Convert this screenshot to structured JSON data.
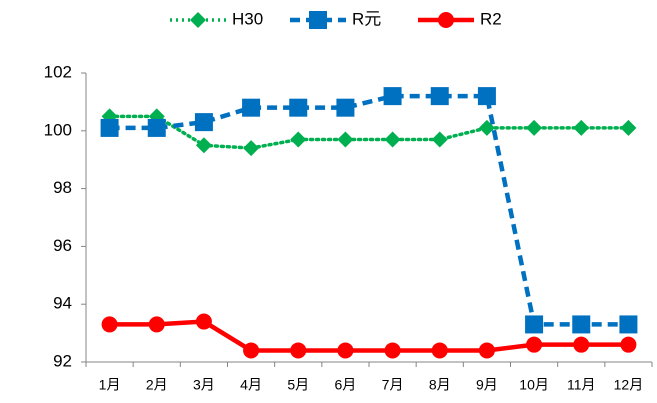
{
  "chart_data": {
    "type": "line",
    "categories": [
      "1月",
      "2月",
      "3月",
      "4月",
      "5月",
      "6月",
      "7月",
      "8月",
      "9月",
      "10月",
      "11月",
      "12月"
    ],
    "series": [
      {
        "name": "H30",
        "color": "#00b050",
        "line_style": "dotted",
        "marker": "diamond",
        "values": [
          100.5,
          100.5,
          99.5,
          99.4,
          99.7,
          99.7,
          99.7,
          99.7,
          100.1,
          100.1,
          100.1,
          100.1
        ]
      },
      {
        "name": "R元",
        "color": "#0070c0",
        "line_style": "dashed",
        "marker": "square",
        "values": [
          100.1,
          100.1,
          100.3,
          100.8,
          100.8,
          100.8,
          101.2,
          101.2,
          101.2,
          93.3,
          93.3,
          93.3
        ]
      },
      {
        "name": "R2",
        "color": "#ff0000",
        "line_style": "solid",
        "marker": "circle",
        "values": [
          93.3,
          93.3,
          93.4,
          92.4,
          92.4,
          92.4,
          92.4,
          92.4,
          92.4,
          92.6,
          92.6,
          92.6
        ]
      }
    ],
    "ylim": [
      92,
      102
    ],
    "yticks": [
      92,
      94,
      96,
      98,
      100,
      102
    ],
    "grid": false,
    "legend": "top"
  }
}
